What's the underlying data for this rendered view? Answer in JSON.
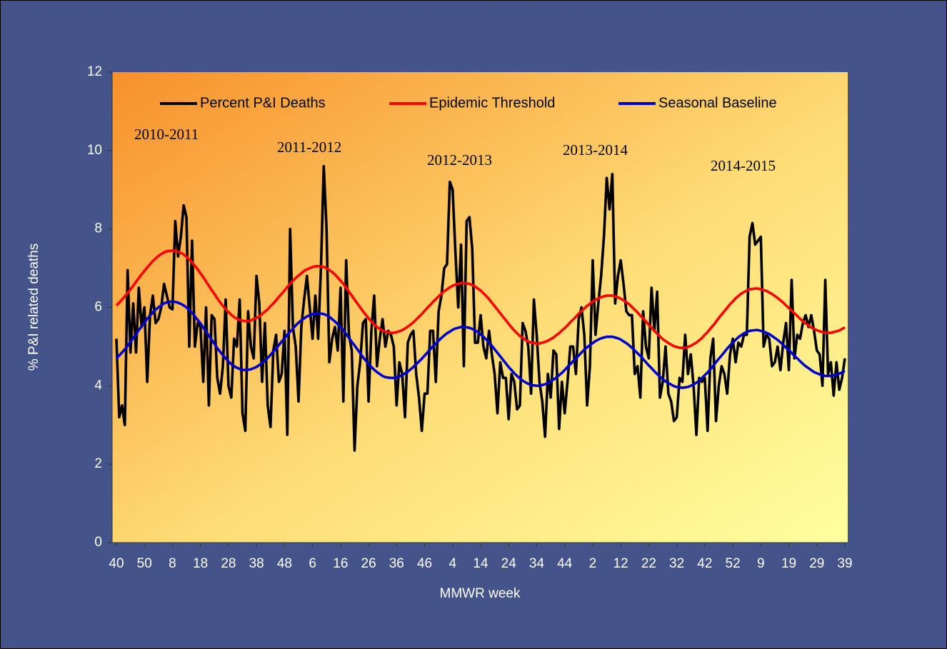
{
  "chart_data": {
    "type": "line",
    "xlabel": "MMWR week",
    "ylabel": "% P&I  related deaths",
    "annotations": [
      "2010-2011",
      "2011-2012",
      "2012-2013",
      "2013-2014",
      "2014-2015"
    ],
    "legend": "top",
    "ylim": [
      0,
      12
    ],
    "yticks": [
      0,
      2,
      4,
      6,
      8,
      10,
      12
    ],
    "categories": [
      40,
      null,
      null,
      null,
      null,
      null,
      null,
      null,
      null,
      null,
      50,
      null,
      null,
      null,
      null,
      null,
      null,
      null,
      null,
      null,
      8,
      null,
      null,
      null,
      null,
      null,
      null,
      null,
      null,
      null,
      18,
      null,
      null,
      null,
      null,
      null,
      null,
      null,
      null,
      null,
      28,
      null,
      null,
      null,
      null,
      null,
      null,
      null,
      null,
      null,
      38,
      null,
      null,
      null,
      null,
      null,
      null,
      null,
      null,
      null,
      48,
      null,
      null,
      null,
      null,
      null,
      null,
      null,
      null,
      null,
      6,
      null,
      null,
      null,
      null,
      null,
      null,
      null,
      null,
      null,
      16,
      null,
      null,
      null,
      null,
      null,
      null,
      null,
      null,
      null,
      26,
      null,
      null,
      null,
      null,
      null,
      null,
      null,
      null,
      null,
      36,
      null,
      null,
      null,
      null,
      null,
      null,
      null,
      null,
      null,
      46,
      null,
      null,
      null,
      null,
      null,
      null,
      null,
      null,
      null,
      4,
      null,
      null,
      null,
      null,
      null,
      null,
      null,
      null,
      null,
      14,
      null,
      null,
      null,
      null,
      null,
      null,
      null,
      null,
      null,
      24,
      null,
      null,
      null,
      null,
      null,
      null,
      null,
      null,
      null,
      34,
      null,
      null,
      null,
      null,
      null,
      null,
      null,
      null,
      null,
      44,
      null,
      null,
      null,
      null,
      null,
      null,
      null,
      null,
      null,
      2,
      null,
      null,
      null,
      null,
      null,
      null,
      null,
      null,
      null,
      12,
      null,
      null,
      null,
      null,
      null,
      null,
      null,
      null,
      null,
      22,
      null,
      null,
      null,
      null,
      null,
      null,
      null,
      null,
      null,
      32,
      null,
      null,
      null,
      null,
      null,
      null,
      null,
      null,
      null,
      42,
      null,
      null,
      null,
      null,
      null,
      null,
      null,
      null,
      null,
      52,
      null,
      null,
      null,
      null,
      null,
      null,
      null,
      null,
      null,
      9,
      null,
      null,
      null,
      null,
      null,
      null,
      null,
      null,
      null,
      19,
      null,
      null,
      null,
      null,
      null,
      null,
      null,
      null,
      null,
      29,
      null,
      null,
      null,
      null,
      null,
      null,
      null,
      null,
      null,
      39
    ],
    "series": [
      {
        "name": "Percent P&I Deaths",
        "color": "#000000",
        "values": [
          5.2,
          3.2,
          3.5,
          3.0,
          6.95,
          4.85,
          6.1,
          4.85,
          6.5,
          5.5,
          6.0,
          4.1,
          5.8,
          6.3,
          5.6,
          5.7,
          6.0,
          6.6,
          6.3,
          6.0,
          5.95,
          8.2,
          7.3,
          7.8,
          8.6,
          8.3,
          5.0,
          7.7,
          5.0,
          5.6,
          5.5,
          4.1,
          6.0,
          3.5,
          5.8,
          5.7,
          4.2,
          3.8,
          4.5,
          6.2,
          4.0,
          3.7,
          5.2,
          5.0,
          6.2,
          3.3,
          2.85,
          5.9,
          5.0,
          4.7,
          6.8,
          6.1,
          4.1,
          5.6,
          3.5,
          2.95,
          4.9,
          5.3,
          4.1,
          4.3,
          5.4,
          2.75,
          8.0,
          5.5,
          5.0,
          3.6,
          5.5,
          6.2,
          6.8,
          6.0,
          5.2,
          6.3,
          5.2,
          7.0,
          9.6,
          8.0,
          4.6,
          5.2,
          5.5,
          4.9,
          6.5,
          3.6,
          7.2,
          5.3,
          4.9,
          2.35,
          4.0,
          4.6,
          5.6,
          5.7,
          3.6,
          5.4,
          6.3,
          4.5,
          5.2,
          5.7,
          5.0,
          5.4,
          5.3,
          5.0,
          3.5,
          4.6,
          4.3,
          3.2,
          5.1,
          5.3,
          5.4,
          4.3,
          3.7,
          2.85,
          3.8,
          3.8,
          5.4,
          5.4,
          4.1,
          5.9,
          6.3,
          7.0,
          7.1,
          9.2,
          9.0,
          7.4,
          6.0,
          7.6,
          4.5,
          8.2,
          8.3,
          7.5,
          5.1,
          5.1,
          5.8,
          5.0,
          4.7,
          5.4,
          4.8,
          4.3,
          3.3,
          4.6,
          4.2,
          4.2,
          3.15,
          4.3,
          4.1,
          3.4,
          3.5,
          5.6,
          5.4,
          5.0,
          3.8,
          6.2,
          5.3,
          4.1,
          3.6,
          2.7,
          4.3,
          3.7,
          4.9,
          4.8,
          2.9,
          4.1,
          3.3,
          4.1,
          5.0,
          5.0,
          4.3,
          5.7,
          6.0,
          5.3,
          3.5,
          4.5,
          7.2,
          5.3,
          6.1,
          6.8,
          7.8,
          9.3,
          8.5,
          9.4,
          6.1,
          6.8,
          7.2,
          6.6,
          5.9,
          5.8,
          5.8,
          4.3,
          4.5,
          3.7,
          5.9,
          5.0,
          4.7,
          6.5,
          5.4,
          6.4,
          3.7,
          4.1,
          5.0,
          3.8,
          3.6,
          3.1,
          3.2,
          4.2,
          4.1,
          5.3,
          4.3,
          4.8,
          4.0,
          2.75,
          4.2,
          4.1,
          4.2,
          2.85,
          4.7,
          5.2,
          3.1,
          4.0,
          4.5,
          4.3,
          3.8,
          4.8,
          5.2,
          4.6,
          5.1,
          5.0,
          5.3,
          5.3,
          7.8,
          8.15,
          7.6,
          7.7,
          7.8,
          5.0,
          5.3,
          5.2,
          4.5,
          4.6,
          5.0,
          4.4,
          5.1,
          5.6,
          4.4,
          6.7,
          4.7,
          5.3,
          5.2,
          5.6,
          5.8,
          5.5,
          5.8,
          5.4,
          4.9,
          4.8,
          4.0,
          6.7,
          4.3,
          4.6,
          3.75,
          4.6,
          3.9,
          4.2,
          4.7
        ]
      },
      {
        "name": "Epidemic Threshold",
        "color": "#ff0000",
        "values": [
          6.05,
          6.12,
          6.2,
          6.28,
          6.37,
          6.46,
          6.55,
          6.65,
          6.75,
          6.84,
          6.93,
          7.02,
          7.1,
          7.18,
          7.25,
          7.31,
          7.36,
          7.4,
          7.43,
          7.44,
          7.45,
          7.44,
          7.42,
          7.39,
          7.35,
          7.29,
          7.22,
          7.15,
          7.06,
          6.97,
          6.87,
          6.77,
          6.66,
          6.55,
          6.44,
          6.34,
          6.23,
          6.13,
          6.04,
          5.95,
          5.88,
          5.81,
          5.75,
          5.71,
          5.68,
          5.66,
          5.65,
          5.65,
          5.67,
          5.7,
          5.73,
          5.77,
          5.83,
          5.89,
          5.95,
          6.03,
          6.1,
          6.18,
          6.27,
          6.35,
          6.43,
          6.52,
          6.6,
          6.68,
          6.75,
          6.81,
          6.87,
          6.93,
          6.97,
          7.0,
          7.03,
          7.05,
          7.05,
          7.04,
          7.03,
          7.0,
          6.95,
          6.9,
          6.84,
          6.76,
          6.68,
          6.6,
          6.5,
          6.4,
          6.3,
          6.2,
          6.1,
          6.0,
          5.9,
          5.81,
          5.72,
          5.64,
          5.56,
          5.5,
          5.45,
          5.41,
          5.38,
          5.36,
          5.35,
          5.35,
          5.37,
          5.39,
          5.42,
          5.46,
          5.51,
          5.56,
          5.62,
          5.69,
          5.76,
          5.83,
          5.91,
          5.99,
          6.06,
          6.14,
          6.21,
          6.28,
          6.35,
          6.41,
          6.46,
          6.51,
          6.55,
          6.58,
          6.6,
          6.62,
          6.62,
          6.61,
          6.6,
          6.57,
          6.53,
          6.48,
          6.43,
          6.36,
          6.29,
          6.21,
          6.12,
          6.03,
          5.94,
          5.85,
          5.76,
          5.67,
          5.58,
          5.49,
          5.41,
          5.34,
          5.27,
          5.22,
          5.17,
          5.13,
          5.1,
          5.09,
          5.08,
          5.08,
          5.1,
          5.12,
          5.15,
          5.19,
          5.23,
          5.29,
          5.34,
          5.41,
          5.47,
          5.54,
          5.62,
          5.69,
          5.76,
          5.84,
          5.91,
          5.97,
          6.04,
          6.09,
          6.15,
          6.19,
          6.23,
          6.26,
          6.28,
          6.3,
          6.3,
          6.3,
          6.28,
          6.26,
          6.22,
          6.18,
          6.13,
          6.08,
          6.01,
          5.94,
          5.87,
          5.79,
          5.72,
          5.64,
          5.55,
          5.48,
          5.4,
          5.33,
          5.26,
          5.19,
          5.14,
          5.09,
          5.05,
          5.01,
          4.99,
          4.97,
          4.97,
          4.97,
          4.99,
          5.02,
          5.06,
          5.1,
          5.16,
          5.22,
          5.3,
          5.37,
          5.46,
          5.54,
          5.63,
          5.73,
          5.82,
          5.9,
          5.99,
          6.08,
          6.15,
          6.23,
          6.29,
          6.35,
          6.39,
          6.43,
          6.46,
          6.47,
          6.48,
          6.48,
          6.46,
          6.44,
          6.42,
          6.38,
          6.34,
          6.29,
          6.24,
          6.18,
          6.12,
          6.05,
          5.98,
          5.92,
          5.85,
          5.78,
          5.71,
          5.65,
          5.59,
          5.54,
          5.49,
          5.45,
          5.42,
          5.39,
          5.37,
          5.35,
          5.35,
          5.35,
          5.37,
          5.39,
          5.41,
          5.45,
          5.49
        ]
      },
      {
        "name": "Seasonal Baseline",
        "color": "#0000cc",
        "values": [
          4.7,
          4.77,
          4.85,
          4.93,
          5.03,
          5.12,
          5.22,
          5.32,
          5.42,
          5.52,
          5.61,
          5.71,
          5.79,
          5.87,
          5.94,
          6.0,
          6.05,
          6.1,
          6.13,
          6.14,
          6.15,
          6.14,
          6.12,
          6.09,
          6.05,
          6.0,
          5.93,
          5.86,
          5.77,
          5.68,
          5.59,
          5.48,
          5.38,
          5.28,
          5.17,
          5.07,
          4.96,
          4.87,
          4.78,
          4.7,
          4.62,
          4.55,
          4.5,
          4.46,
          4.43,
          4.41,
          4.4,
          4.41,
          4.42,
          4.45,
          4.48,
          4.53,
          4.58,
          4.64,
          4.71,
          4.79,
          4.87,
          4.95,
          5.04,
          5.13,
          5.21,
          5.3,
          5.38,
          5.46,
          5.54,
          5.61,
          5.67,
          5.72,
          5.77,
          5.8,
          5.83,
          5.84,
          5.85,
          5.84,
          5.83,
          5.8,
          5.76,
          5.7,
          5.64,
          5.57,
          5.49,
          5.41,
          5.32,
          5.22,
          5.12,
          5.03,
          4.93,
          4.83,
          4.73,
          4.64,
          4.56,
          4.48,
          4.41,
          4.35,
          4.3,
          4.25,
          4.22,
          4.21,
          4.2,
          4.2,
          4.22,
          4.24,
          4.27,
          4.32,
          4.36,
          4.42,
          4.48,
          4.55,
          4.62,
          4.69,
          4.77,
          4.85,
          4.93,
          5.01,
          5.08,
          5.15,
          5.22,
          5.28,
          5.34,
          5.38,
          5.43,
          5.46,
          5.48,
          5.5,
          5.5,
          5.49,
          5.48,
          5.45,
          5.41,
          5.37,
          5.31,
          5.25,
          5.18,
          5.1,
          5.02,
          4.93,
          4.84,
          4.75,
          4.66,
          4.57,
          4.48,
          4.4,
          4.32,
          4.25,
          4.19,
          4.13,
          4.09,
          4.05,
          4.02,
          4.01,
          4.0,
          4.0,
          4.02,
          4.04,
          4.07,
          4.11,
          4.16,
          4.21,
          4.27,
          4.33,
          4.4,
          4.48,
          4.55,
          4.63,
          4.7,
          4.77,
          4.85,
          4.92,
          4.98,
          5.04,
          5.09,
          5.14,
          5.18,
          5.21,
          5.23,
          5.25,
          5.25,
          5.25,
          5.23,
          5.21,
          5.18,
          5.13,
          5.09,
          5.03,
          4.97,
          4.9,
          4.83,
          4.76,
          4.68,
          4.6,
          4.52,
          4.45,
          4.37,
          4.3,
          4.23,
          4.17,
          4.11,
          4.07,
          4.03,
          3.99,
          3.97,
          3.96,
          3.95,
          3.96,
          3.97,
          4.0,
          4.03,
          4.08,
          4.13,
          4.2,
          4.27,
          4.34,
          4.42,
          4.51,
          4.6,
          4.69,
          4.77,
          4.86,
          4.95,
          5.03,
          5.1,
          5.17,
          5.24,
          5.29,
          5.34,
          5.37,
          5.4,
          5.41,
          5.42,
          5.42,
          5.4,
          5.38,
          5.35,
          5.32,
          5.27,
          5.22,
          5.17,
          5.11,
          5.04,
          4.97,
          4.91,
          4.84,
          4.76,
          4.7,
          4.63,
          4.56,
          4.5,
          4.45,
          4.4,
          4.35,
          4.32,
          4.29,
          4.27,
          4.25,
          4.25,
          4.25,
          4.27,
          4.28,
          4.31,
          4.34,
          4.38
        ]
      }
    ]
  }
}
